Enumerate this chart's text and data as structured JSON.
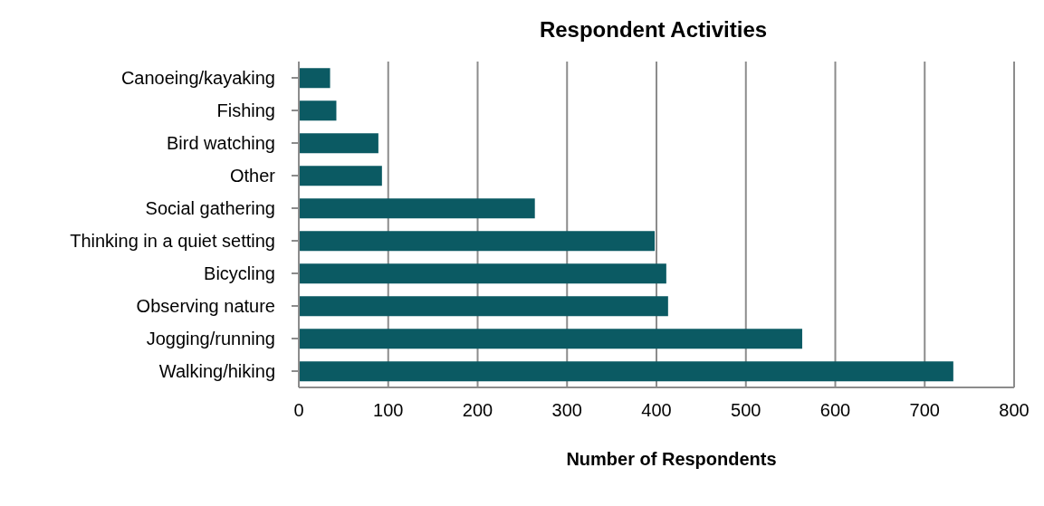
{
  "chart_data": {
    "type": "bar",
    "orientation": "horizontal",
    "title": "Respondent Activities",
    "xlabel": "Number of Respondents",
    "categories": [
      "Canoeing/kayaking",
      "Fishing",
      "Bird watching",
      "Other",
      "Social gathering",
      "Thinking in a quiet setting",
      "Bicycling",
      "Observing nature",
      "Jogging/running",
      "Walking/hiking"
    ],
    "values": [
      35,
      42,
      89,
      93,
      264,
      398,
      411,
      413,
      563,
      732
    ],
    "color": "#0b5a63",
    "xlim": [
      0,
      800
    ],
    "xticks": [
      0,
      100,
      200,
      300,
      400,
      500,
      600,
      700,
      800
    ],
    "grid": "x"
  }
}
